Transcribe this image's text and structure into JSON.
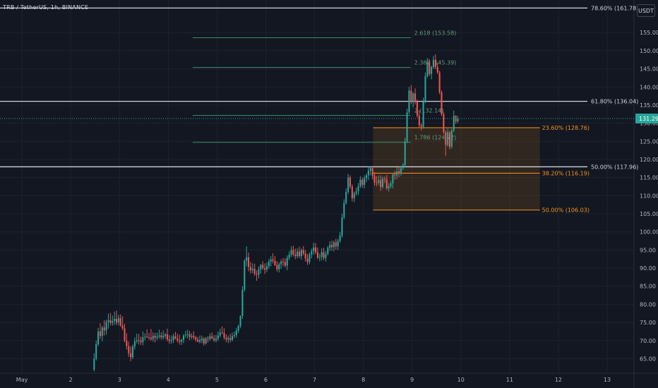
{
  "header": {
    "symbol_title": "TRB / TetherUS, 1h, BINANCE"
  },
  "toolbar": {
    "currency_label": "USDT"
  },
  "colors": {
    "background": "#131722",
    "grid": "#1e222d",
    "axis_text": "#b2b5be",
    "up": "#26a69a",
    "down": "#ef5350",
    "fib_white": "#d1d4dc",
    "fib_ext": "#3b8f6c",
    "fib_ext_text": "#5f9e7a",
    "fib_retr": "#f7931a",
    "zone_fill": "rgba(247,147,26,0.13)",
    "price_tag": "#26a69a"
  },
  "chart_data": {
    "type": "candlestick",
    "y_axis": {
      "ticks": [
        65,
        70,
        75,
        80,
        85,
        90,
        95,
        100,
        105,
        110,
        115,
        120,
        125,
        130,
        135,
        140,
        145,
        150,
        155
      ],
      "tick_labels": [
        "65.00",
        "70.00",
        "75.00",
        "80.00",
        "85.00",
        "90.00",
        "95.00",
        "100.00",
        "105.00",
        "110.00",
        "115.00",
        "120.00",
        "125.00",
        "130.00",
        "135.00",
        "140.00",
        "145.00",
        "150.00",
        "155.00"
      ],
      "ylim": [
        61,
        164
      ]
    },
    "x_axis": {
      "tick_labels": [
        "May",
        "2",
        "3",
        "4",
        "5",
        "6",
        "7",
        "8",
        "9",
        "10",
        "11",
        "12",
        "13"
      ],
      "tick_days": [
        1,
        2,
        3,
        4,
        5,
        6,
        7,
        8,
        9,
        10,
        11,
        12,
        13
      ],
      "xlim_days": [
        0.55,
        13.55
      ]
    },
    "current_price": {
      "value": 131.29,
      "label": "131.29"
    },
    "fib_levels_main": [
      {
        "label": "78.60% (161.78)",
        "value": 161.78
      },
      {
        "label": "61.80% (136.04)",
        "value": 136.04
      },
      {
        "label": "50.00% (117.96)",
        "value": 117.96
      }
    ],
    "fib_extension": {
      "start_day": 4.5,
      "end_day": 8.97,
      "levels": [
        {
          "label": "2.618 (153.58)",
          "value": 153.58
        },
        {
          "label": "2.382 (145.39)",
          "value": 145.39
        },
        {
          "label": "2 (132.14)",
          "value": 132.14
        },
        {
          "label": "1.786 (124.72)",
          "value": 124.72
        }
      ]
    },
    "fib_retracement": {
      "start_day": 8.2,
      "end_day": 11.62,
      "levels": [
        {
          "label": "23.60% (128.76)",
          "value": 128.76
        },
        {
          "label": "38.20% (116.19)",
          "value": 116.19
        },
        {
          "label": "50.00% (106.03)",
          "value": 106.03
        }
      ]
    },
    "candles_start_day": 2.48,
    "candle_hours": 1,
    "candles": [
      [
        62.0,
        66.5,
        61.5,
        65.0
      ],
      [
        65.0,
        70.0,
        64.5,
        69.0
      ],
      [
        69.0,
        73.5,
        68.5,
        72.5
      ],
      [
        72.5,
        74.8,
        70.5,
        71.3
      ],
      [
        71.3,
        74.1,
        69.8,
        73.6
      ],
      [
        73.6,
        75.6,
        71.4,
        72.8
      ],
      [
        72.8,
        75.8,
        71.6,
        75.1
      ],
      [
        75.1,
        77.4,
        73.3,
        75.6
      ],
      [
        75.6,
        77.6,
        74.2,
        74.9
      ],
      [
        74.9,
        76.9,
        74.1,
        75.4
      ],
      [
        75.4,
        78.0,
        74.3,
        76.0
      ],
      [
        76.0,
        78.3,
        74.3,
        75.0
      ],
      [
        75.0,
        77.1,
        74.2,
        76.2
      ],
      [
        76.2,
        77.2,
        73.8,
        74.2
      ],
      [
        74.2,
        76.7,
        72.9,
        73.4
      ],
      [
        73.4,
        74.6,
        69.5,
        70.0
      ],
      [
        70.0,
        72.0,
        67.5,
        68.5
      ],
      [
        68.5,
        69.7,
        65.5,
        66.5
      ],
      [
        66.5,
        68.4,
        64.3,
        65.4
      ],
      [
        65.4,
        68.9,
        64.9,
        68.4
      ],
      [
        68.4,
        70.9,
        67.5,
        69.8
      ],
      [
        69.8,
        71.9,
        69.2,
        70.1
      ],
      [
        70.1,
        71.8,
        68.9,
        70.0
      ],
      [
        70.0,
        71.1,
        68.8,
        69.6
      ],
      [
        69.6,
        72.5,
        68.7,
        70.9
      ],
      [
        70.9,
        72.0,
        70.1,
        71.1
      ],
      [
        71.1,
        73.1,
        70.7,
        70.9
      ],
      [
        70.9,
        72.1,
        70.2,
        70.8
      ],
      [
        70.8,
        73.2,
        69.9,
        70.4
      ],
      [
        70.4,
        72.3,
        69.7,
        71.3
      ],
      [
        71.3,
        72.1,
        69.5,
        70.8
      ],
      [
        70.8,
        72.2,
        70.1,
        71.1
      ],
      [
        71.1,
        73.0,
        70.5,
        71.4
      ],
      [
        71.4,
        72.3,
        70.3,
        70.9
      ],
      [
        70.9,
        72.8,
        70.3,
        71.3
      ],
      [
        71.3,
        72.1,
        70.5,
        71.7
      ],
      [
        71.7,
        73.3,
        69.8,
        70.3
      ],
      [
        70.3,
        71.5,
        69.2,
        69.9
      ],
      [
        69.9,
        71.4,
        69.1,
        70.2
      ],
      [
        70.2,
        71.9,
        69.3,
        71.2
      ],
      [
        71.2,
        72.4,
        70.3,
        70.6
      ],
      [
        70.6,
        71.9,
        69.5,
        70.0
      ],
      [
        70.0,
        71.6,
        68.9,
        69.7
      ],
      [
        69.7,
        70.5,
        68.8,
        70.2
      ],
      [
        70.2,
        71.8,
        69.3,
        71.4
      ],
      [
        71.4,
        72.7,
        70.8,
        71.6
      ],
      [
        71.6,
        73.0,
        70.6,
        71.8
      ],
      [
        71.8,
        72.7,
        70.1,
        71.0
      ],
      [
        71.0,
        72.0,
        70.4,
        71.3
      ],
      [
        71.3,
        72.6,
        70.3,
        70.9
      ],
      [
        70.9,
        71.3,
        69.7,
        70.3
      ],
      [
        70.3,
        71.0,
        69.5,
        69.7
      ],
      [
        69.7,
        71.4,
        69.2,
        70.1
      ],
      [
        70.1,
        71.4,
        69.3,
        70.5
      ],
      [
        70.5,
        71.0,
        68.6,
        69.2
      ],
      [
        69.2,
        71.0,
        68.9,
        70.6
      ],
      [
        70.6,
        71.2,
        69.5,
        70.4
      ],
      [
        70.4,
        72.0,
        69.9,
        71.2
      ],
      [
        71.2,
        72.2,
        70.4,
        70.6
      ],
      [
        70.6,
        71.5,
        69.6,
        70.1
      ],
      [
        70.1,
        71.6,
        69.5,
        70.5
      ],
      [
        70.5,
        72.5,
        69.9,
        71.4
      ],
      [
        71.4,
        73.3,
        70.9,
        72.2
      ],
      [
        72.2,
        73.9,
        71.8,
        72.1
      ],
      [
        72.1,
        73.4,
        70.3,
        70.8
      ],
      [
        70.8,
        71.7,
        69.6,
        70.3
      ],
      [
        70.3,
        71.4,
        69.3,
        70.7
      ],
      [
        70.7,
        71.9,
        69.5,
        70.2
      ],
      [
        70.2,
        72.2,
        69.8,
        71.3
      ],
      [
        71.3,
        72.5,
        70.7,
        71.5
      ],
      [
        71.5,
        73.5,
        70.8,
        72.7
      ],
      [
        72.7,
        74.4,
        72.1,
        74.0
      ],
      [
        74.0,
        77.0,
        73.4,
        76.8
      ],
      [
        76.8,
        85.0,
        76.0,
        84.0
      ],
      [
        84.0,
        92.5,
        83.5,
        92.0
      ],
      [
        92.0,
        96.0,
        90.5,
        93.0
      ],
      [
        93.0,
        94.3,
        89.1,
        90.3
      ],
      [
        90.3,
        91.7,
        88.5,
        89.4
      ],
      [
        89.4,
        91.3,
        88.6,
        89.8
      ],
      [
        89.8,
        91.2,
        87.8,
        88.4
      ],
      [
        88.4,
        89.4,
        86.5,
        88.2
      ],
      [
        88.2,
        90.5,
        87.2,
        89.7
      ],
      [
        89.7,
        91.1,
        88.5,
        90.9
      ],
      [
        90.9,
        91.9,
        89.5,
        90.0
      ],
      [
        90.0,
        91.3,
        88.4,
        89.6
      ],
      [
        89.6,
        91.5,
        88.9,
        90.5
      ],
      [
        90.5,
        92.5,
        89.8,
        91.8
      ],
      [
        91.8,
        93.3,
        90.5,
        92.4
      ],
      [
        92.4,
        94.1,
        91.3,
        92.0
      ],
      [
        92.0,
        93.3,
        90.6,
        90.8
      ],
      [
        90.8,
        91.9,
        89.0,
        89.7
      ],
      [
        89.7,
        91.6,
        88.8,
        91.1
      ],
      [
        91.1,
        92.4,
        89.8,
        91.8
      ],
      [
        91.8,
        92.8,
        90.5,
        91.7
      ],
      [
        91.7,
        92.7,
        90.2,
        90.7
      ],
      [
        90.7,
        93.5,
        89.4,
        92.8
      ],
      [
        92.8,
        94.6,
        92.2,
        93.7
      ],
      [
        93.7,
        96.0,
        93.1,
        95.0
      ],
      [
        95.0,
        96.2,
        93.2,
        93.8
      ],
      [
        93.8,
        95.4,
        92.5,
        93.3
      ],
      [
        93.3,
        95.5,
        92.7,
        94.6
      ],
      [
        94.6,
        95.9,
        92.8,
        93.3
      ],
      [
        93.3,
        95.4,
        92.3,
        95.0
      ],
      [
        95.0,
        96.1,
        93.5,
        94.0
      ],
      [
        94.0,
        95.0,
        91.8,
        92.7
      ],
      [
        92.7,
        93.9,
        90.9,
        91.7
      ],
      [
        91.7,
        94.3,
        91.1,
        93.8
      ],
      [
        93.8,
        95.4,
        92.7,
        94.7
      ],
      [
        94.7,
        97.0,
        93.7,
        95.7
      ],
      [
        95.7,
        96.9,
        93.9,
        94.4
      ],
      [
        94.4,
        95.7,
        92.5,
        92.9
      ],
      [
        92.9,
        94.0,
        91.9,
        93.1
      ],
      [
        93.1,
        95.5,
        92.1,
        94.4
      ],
      [
        94.4,
        95.6,
        92.2,
        92.8
      ],
      [
        92.8,
        94.7,
        91.8,
        93.9
      ],
      [
        93.9,
        96.1,
        93.5,
        95.6
      ],
      [
        95.6,
        97.4,
        94.7,
        96.4
      ],
      [
        96.4,
        97.6,
        94.8,
        95.8
      ],
      [
        95.8,
        97.6,
        94.6,
        97.1
      ],
      [
        97.1,
        98.1,
        95.1,
        96.0
      ],
      [
        96.0,
        98.0,
        95.0,
        97.5
      ],
      [
        97.5,
        100.0,
        97.0,
        99.0
      ],
      [
        99.0,
        105.0,
        98.4,
        104.0
      ],
      [
        104.0,
        109.0,
        103.5,
        108.0
      ],
      [
        108.0,
        112.0,
        107.5,
        111.0
      ],
      [
        111.0,
        116.0,
        110.5,
        115.0
      ],
      [
        115.0,
        115.6,
        111.9,
        112.5
      ],
      [
        112.5,
        113.1,
        108.4,
        109.3
      ],
      [
        109.3,
        111.1,
        108.2,
        110.6
      ],
      [
        110.6,
        112.2,
        110.0,
        111.2
      ],
      [
        111.2,
        113.5,
        110.2,
        112.6
      ],
      [
        112.6,
        115.4,
        112.1,
        114.4
      ],
      [
        114.4,
        115.1,
        112.2,
        113.0
      ],
      [
        113.0,
        115.6,
        112.0,
        114.8
      ],
      [
        114.8,
        116.1,
        113.7,
        115.6
      ],
      [
        115.6,
        118.0,
        114.3,
        116.9
      ],
      [
        116.9,
        118.0,
        115.6,
        117.6
      ],
      [
        117.6,
        118.2,
        114.5,
        115.5
      ],
      [
        115.5,
        116.5,
        112.8,
        113.7
      ],
      [
        113.7,
        115.4,
        112.6,
        113.5
      ],
      [
        113.5,
        115.5,
        112.9,
        114.3
      ],
      [
        114.3,
        115.6,
        111.3,
        112.4
      ],
      [
        112.4,
        115.3,
        111.9,
        114.7
      ],
      [
        114.7,
        115.3,
        113.5,
        114.5
      ],
      [
        114.5,
        115.7,
        111.6,
        112.0
      ],
      [
        112.0,
        113.5,
        111.1,
        112.6
      ],
      [
        112.6,
        114.0,
        112.0,
        113.4
      ],
      [
        113.4,
        116.3,
        112.0,
        115.9
      ],
      [
        115.9,
        116.8,
        114.4,
        115.6
      ],
      [
        115.6,
        117.8,
        114.6,
        116.7
      ],
      [
        116.7,
        118.0,
        115.1,
        116.1
      ],
      [
        116.1,
        118.0,
        115.5,
        117.6
      ],
      [
        117.6,
        119.0,
        117.0,
        118.5
      ],
      [
        118.5,
        126.0,
        118.0,
        125.0
      ],
      [
        125.0,
        134.0,
        124.5,
        133.0
      ],
      [
        133.0,
        140.0,
        132.5,
        139.0
      ],
      [
        139.0,
        140.5,
        135.3,
        135.8
      ],
      [
        135.8,
        138.6,
        134.4,
        138.2
      ],
      [
        138.2,
        139.6,
        135.2,
        136.0
      ],
      [
        136.0,
        136.5,
        131.6,
        132.1
      ],
      [
        132.1,
        133.6,
        128.9,
        129.4
      ],
      [
        129.4,
        130.0,
        128.0,
        129.0
      ],
      [
        129.0,
        137.0,
        128.5,
        136.0
      ],
      [
        136.0,
        144.0,
        135.5,
        143.0
      ],
      [
        143.0,
        148.0,
        142.5,
        147.0
      ],
      [
        147.0,
        147.7,
        143.0,
        143.6
      ],
      [
        143.6,
        145.9,
        142.1,
        145.5
      ],
      [
        145.5,
        148.6,
        145.0,
        147.5
      ],
      [
        147.5,
        149.0,
        144.9,
        145.5
      ],
      [
        145.5,
        146.7,
        143.6,
        144.0
      ],
      [
        144.0,
        144.5,
        138.0,
        138.5
      ],
      [
        138.5,
        139.0,
        132.0,
        132.5
      ],
      [
        132.5,
        133.0,
        127.0,
        127.5
      ],
      [
        127.5,
        128.0,
        121.0,
        124.0
      ],
      [
        124.0,
        128.5,
        123.5,
        127.5
      ],
      [
        127.5,
        127.9,
        122.8,
        123.5
      ],
      [
        123.5,
        128.5,
        123.0,
        128.0
      ],
      [
        128.0,
        133.5,
        127.5,
        132.0
      ],
      [
        132.0,
        132.2,
        129.8,
        130.5
      ],
      [
        130.5,
        132.0,
        130.0,
        131.29
      ]
    ]
  }
}
